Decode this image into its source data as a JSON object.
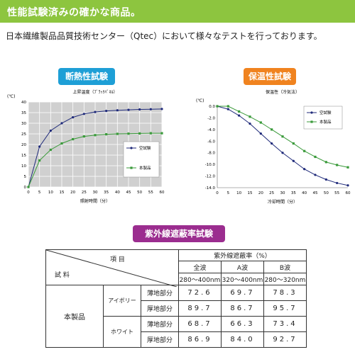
{
  "banner": {
    "title": "性能試験済みの確かな商品。"
  },
  "intro": "日本繊維製品品質技術センター（Qtec）において様々なテストを行っております。",
  "colors": {
    "banner": "#8dc53f",
    "pill_blue": "#1e9fd6",
    "pill_orange": "#f0831f",
    "pill_purple": "#9b2d8f",
    "series1": "#1f2a7a",
    "series2": "#3a9a3a"
  },
  "pills": {
    "insulation": "断熱性試験",
    "warmth": "保温性試験",
    "uv": "紫外線遮蔽率試験"
  },
  "chart_data": [
    {
      "type": "line",
      "title": "上昇温度（ﾌﾞﾗｯｸﾊﾟﾈﾙ）",
      "ylabel": "(℃)",
      "xlabel": "照射時間（分）",
      "x": [
        0,
        5,
        10,
        15,
        20,
        25,
        30,
        35,
        40,
        45,
        50,
        55,
        60
      ],
      "xticks": [
        "0",
        "5",
        "10",
        "15",
        "20",
        "25",
        "30",
        "35",
        "40",
        "45",
        "50",
        "55",
        "60"
      ],
      "yticks": [
        "0",
        "5",
        "10",
        "15",
        "20",
        "25",
        "30",
        "35",
        "40"
      ],
      "ylim": [
        0,
        40
      ],
      "xlim": [
        0,
        60
      ],
      "grid": true,
      "legend_position": "center-right",
      "series": [
        {
          "name": "空試験",
          "values": [
            0,
            19,
            26.5,
            30,
            32.8,
            34.4,
            35.3,
            35.8,
            36.1,
            36.3,
            36.5,
            36.6,
            36.7
          ]
        },
        {
          "name": "本製品",
          "values": [
            0,
            12.5,
            17.5,
            20.5,
            22.5,
            23.8,
            24.4,
            24.8,
            25,
            25.1,
            25.2,
            25.3,
            25.3
          ]
        }
      ]
    },
    {
      "type": "line",
      "title": "保温性（冷気法）",
      "ylabel": "(℃)",
      "xlabel": "冷却時間（分）",
      "x": [
        0,
        5,
        10,
        15,
        20,
        25,
        30,
        35,
        40,
        45,
        50,
        55,
        60
      ],
      "xticks": [
        "0",
        "5",
        "10",
        "15",
        "20",
        "25",
        "30",
        "35",
        "40",
        "45",
        "50",
        "55",
        "60"
      ],
      "yticks": [
        "0.0",
        "-2.0",
        "-4.0",
        "-6.0",
        "-8.0",
        "-10.0",
        "-12.0",
        "-14.0"
      ],
      "ylim": [
        -14,
        0
      ],
      "xlim": [
        0,
        60
      ],
      "grid": false,
      "legend_position": "top-right",
      "series": [
        {
          "name": "空試験",
          "values": [
            0,
            -0.5,
            -1.6,
            -3.0,
            -4.7,
            -6.4,
            -8.0,
            -9.4,
            -10.8,
            -11.8,
            -12.6,
            -13.2,
            -13.6
          ]
        },
        {
          "name": "本製品",
          "values": [
            0,
            0,
            -0.9,
            -1.8,
            -2.8,
            -4.0,
            -5.2,
            -6.4,
            -7.7,
            -8.7,
            -9.6,
            -10.1,
            -10.5
          ]
        }
      ]
    },
    {
      "type": "table",
      "header": {
        "item": "項 目",
        "sample": "試 料",
        "group": "紫外線遮蔽率（%）",
        "cols": [
          {
            "name": "全波",
            "range": "280～400nm"
          },
          {
            "name": "A波",
            "range": "320～400nm"
          },
          {
            "name": "B波",
            "range": "280～320nm"
          }
        ]
      },
      "product": "本製品",
      "rows": [
        {
          "color": "アイボリー",
          "part": "薄地部分",
          "values": [
            "72.6",
            "69.7",
            "78.3"
          ]
        },
        {
          "color": "アイボリー",
          "part": "厚地部分",
          "values": [
            "89.7",
            "86.7",
            "95.7"
          ]
        },
        {
          "color": "ホワイト",
          "part": "薄地部分",
          "values": [
            "68.7",
            "66.3",
            "73.4"
          ]
        },
        {
          "color": "ホワイト",
          "part": "厚地部分",
          "values": [
            "86.9",
            "84.0",
            "92.7"
          ]
        }
      ]
    }
  ]
}
